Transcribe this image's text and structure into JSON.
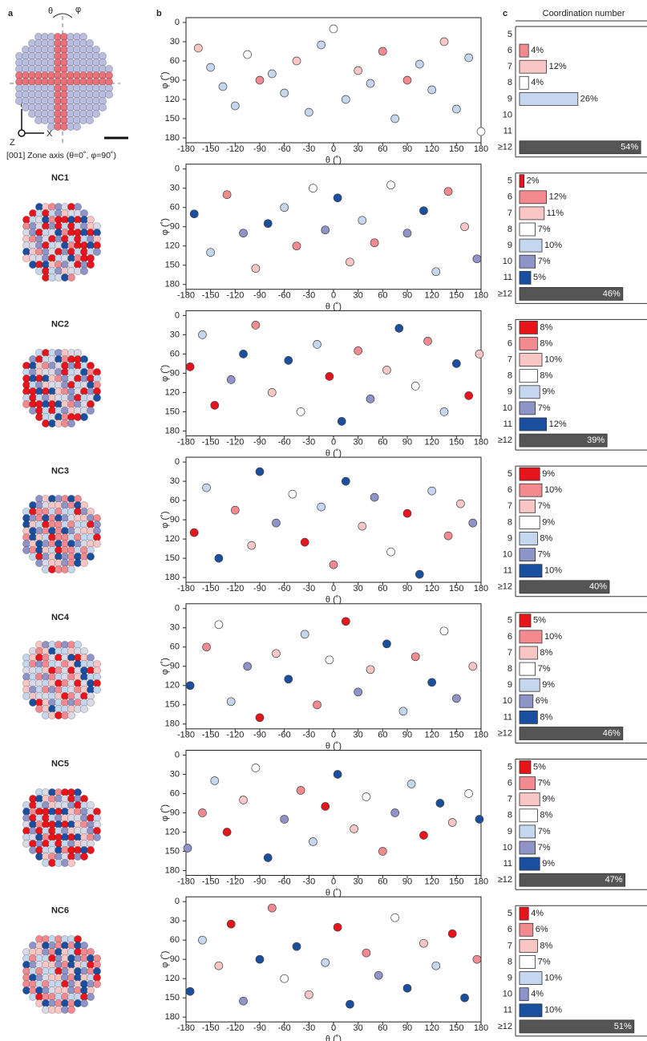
{
  "panel_labels": [
    "a",
    "b",
    "c"
  ],
  "coordination_title": "Coordination number",
  "zone_axis": "[001] Zone axis (θ=0˚, φ=90˚)",
  "axis_letters": {
    "x": "X",
    "y": "Y",
    "z": "Z",
    "theta": "θ",
    "phi": "φ"
  },
  "nc_labels": [
    "NC1",
    "NC2",
    "NC3",
    "NC4",
    "NC5",
    "NC6"
  ],
  "cn_colors": [
    "#e8141c",
    "#f28a90",
    "#f8c6c4",
    "#ffffff",
    "#c5d7ef",
    "#8e93c8",
    "#1a4fa0",
    "#555555"
  ],
  "chart_data": [
    {
      "type": "scatter",
      "xlabel": "θ (˚)",
      "ylabel": "φ (˚)",
      "xlim": [
        -180,
        180
      ],
      "ylim": [
        180,
        0
      ],
      "xticks": [
        -180,
        -150,
        -120,
        -90,
        -60,
        -30,
        0,
        30,
        60,
        90,
        120,
        150,
        180
      ],
      "yticks": [
        0,
        30,
        60,
        90,
        120,
        150,
        180
      ],
      "x": [
        -165,
        -150,
        -135,
        -120,
        -105,
        -90,
        -75,
        -60,
        -45,
        -30,
        -15,
        0,
        15,
        30,
        45,
        60,
        75,
        90,
        105,
        120,
        135,
        150,
        165,
        180
      ],
      "y": [
        40,
        70,
        100,
        130,
        50,
        90,
        80,
        110,
        60,
        140,
        35,
        10,
        120,
        75,
        95,
        45,
        150,
        90,
        65,
        105,
        30,
        135,
        55,
        170
      ],
      "cn": [
        7,
        9,
        9,
        9,
        8,
        6,
        9,
        9,
        7,
        9,
        9,
        8,
        9,
        7,
        9,
        6,
        9,
        6,
        9,
        9,
        7,
        9,
        9,
        8
      ]
    },
    {
      "type": "scatter",
      "xlabel": "θ (˚)",
      "ylabel": "φ (˚)",
      "xlim": [
        -180,
        180
      ],
      "ylim": [
        180,
        0
      ],
      "xticks": [
        -180,
        -150,
        -120,
        -90,
        -60,
        -30,
        0,
        30,
        60,
        90,
        120,
        150,
        180
      ],
      "yticks": [
        0,
        30,
        60,
        90,
        120,
        150,
        180
      ],
      "x": [
        -170,
        -150,
        -130,
        -110,
        -95,
        -80,
        -60,
        -45,
        -25,
        -10,
        5,
        20,
        35,
        50,
        70,
        90,
        110,
        125,
        140,
        160,
        175
      ],
      "y": [
        70,
        130,
        40,
        100,
        155,
        85,
        60,
        120,
        30,
        95,
        45,
        145,
        80,
        115,
        25,
        100,
        65,
        160,
        35,
        90,
        140
      ],
      "cn": [
        11,
        9,
        6,
        10,
        7,
        11,
        9,
        6,
        8,
        10,
        11,
        7,
        9,
        6,
        8,
        10,
        11,
        9,
        6,
        7,
        10
      ]
    },
    {
      "type": "scatter",
      "xlabel": "θ (˚)",
      "ylabel": "φ (˚)",
      "xlim": [
        -180,
        180
      ],
      "ylim": [
        180,
        0
      ],
      "xticks": [
        -180,
        -150,
        -120,
        -90,
        -60,
        -30,
        0,
        30,
        60,
        90,
        120,
        150,
        180
      ],
      "yticks": [
        0,
        30,
        60,
        90,
        120,
        150,
        180
      ],
      "x": [
        -175,
        -160,
        -145,
        -125,
        -110,
        -95,
        -75,
        -55,
        -40,
        -20,
        -5,
        10,
        30,
        45,
        65,
        80,
        100,
        115,
        135,
        150,
        165,
        178
      ],
      "y": [
        80,
        30,
        140,
        100,
        60,
        15,
        120,
        70,
        150,
        45,
        95,
        165,
        55,
        130,
        85,
        20,
        110,
        40,
        150,
        75,
        125,
        60
      ],
      "cn": [
        5,
        9,
        5,
        10,
        11,
        6,
        7,
        11,
        8,
        9,
        5,
        11,
        6,
        10,
        7,
        11,
        8,
        6,
        9,
        11,
        5,
        7
      ]
    },
    {
      "type": "scatter",
      "xlabel": "θ (˚)",
      "ylabel": "φ (˚)",
      "xlim": [
        -180,
        180
      ],
      "ylim": [
        180,
        0
      ],
      "xticks": [
        -180,
        -150,
        -120,
        -90,
        -60,
        -30,
        0,
        30,
        60,
        90,
        120,
        150,
        180
      ],
      "yticks": [
        0,
        30,
        60,
        90,
        120,
        150,
        180
      ],
      "x": [
        -170,
        -155,
        -140,
        -120,
        -100,
        -90,
        -70,
        -50,
        -35,
        -15,
        0,
        15,
        35,
        50,
        70,
        90,
        105,
        120,
        140,
        155,
        170
      ],
      "y": [
        110,
        40,
        150,
        75,
        130,
        15,
        95,
        50,
        125,
        70,
        160,
        30,
        100,
        55,
        140,
        80,
        175,
        45,
        115,
        65,
        95
      ],
      "cn": [
        5,
        9,
        11,
        6,
        7,
        11,
        10,
        8,
        5,
        9,
        6,
        11,
        7,
        10,
        8,
        5,
        11,
        9,
        6,
        7,
        10
      ]
    },
    {
      "type": "scatter",
      "xlabel": "θ (˚)",
      "ylabel": "φ (˚)",
      "xlim": [
        -180,
        180
      ],
      "ylim": [
        180,
        0
      ],
      "xticks": [
        -180,
        -150,
        -120,
        -90,
        -60,
        -30,
        0,
        30,
        60,
        90,
        120,
        150,
        180
      ],
      "yticks": [
        0,
        30,
        60,
        90,
        120,
        150,
        180
      ],
      "x": [
        -175,
        -155,
        -140,
        -125,
        -105,
        -90,
        -70,
        -55,
        -35,
        -20,
        -5,
        15,
        30,
        45,
        65,
        85,
        100,
        120,
        135,
        150,
        170
      ],
      "y": [
        120,
        60,
        25,
        145,
        90,
        170,
        70,
        110,
        40,
        150,
        80,
        20,
        130,
        95,
        55,
        160,
        75,
        115,
        35,
        140,
        90
      ],
      "cn": [
        11,
        6,
        8,
        9,
        10,
        5,
        7,
        11,
        9,
        6,
        8,
        5,
        10,
        7,
        11,
        9,
        6,
        11,
        8,
        10,
        7
      ]
    },
    {
      "type": "scatter",
      "xlabel": "θ (˚)",
      "ylabel": "φ (˚)",
      "xlim": [
        -180,
        180
      ],
      "ylim": [
        180,
        0
      ],
      "xticks": [
        -180,
        -150,
        -120,
        -90,
        -60,
        -30,
        0,
        30,
        60,
        90,
        120,
        150,
        180
      ],
      "yticks": [
        0,
        30,
        60,
        90,
        120,
        150,
        180
      ],
      "x": [
        -178,
        -160,
        -145,
        -130,
        -110,
        -95,
        -80,
        -60,
        -40,
        -25,
        -10,
        5,
        25,
        40,
        60,
        75,
        95,
        110,
        130,
        145,
        165,
        178
      ],
      "y": [
        145,
        90,
        40,
        120,
        70,
        20,
        160,
        100,
        55,
        135,
        80,
        30,
        115,
        65,
        150,
        90,
        45,
        125,
        75,
        105,
        60,
        100
      ],
      "cn": [
        10,
        6,
        9,
        5,
        7,
        8,
        11,
        10,
        6,
        9,
        5,
        11,
        7,
        8,
        6,
        10,
        9,
        5,
        11,
        7,
        8,
        11
      ]
    },
    {
      "type": "scatter",
      "xlabel": "θ (˚)",
      "ylabel": "φ (˚)",
      "xlim": [
        -180,
        180
      ],
      "ylim": [
        180,
        0
      ],
      "xticks": [
        -180,
        -150,
        -120,
        -90,
        -60,
        -30,
        0,
        30,
        60,
        90,
        120,
        150,
        180
      ],
      "yticks": [
        0,
        30,
        60,
        90,
        120,
        150,
        180
      ],
      "x": [
        -175,
        -160,
        -140,
        -125,
        -110,
        -90,
        -75,
        -60,
        -45,
        -30,
        -10,
        5,
        20,
        40,
        55,
        75,
        90,
        110,
        125,
        145,
        160,
        175
      ],
      "y": [
        140,
        60,
        100,
        35,
        155,
        90,
        10,
        120,
        70,
        145,
        95,
        40,
        160,
        80,
        115,
        25,
        135,
        65,
        100,
        50,
        150,
        90
      ],
      "cn": [
        11,
        9,
        7,
        5,
        10,
        11,
        6,
        8,
        11,
        7,
        9,
        5,
        11,
        6,
        10,
        8,
        11,
        7,
        9,
        5,
        11,
        6
      ]
    },
    {
      "type": "hbar",
      "categories": [
        "5",
        "6",
        "7",
        "8",
        "9",
        "10",
        "11",
        "≥12"
      ],
      "values": [
        null,
        4,
        12,
        4,
        26,
        null,
        null,
        54
      ],
      "value_labels": [
        null,
        "4%",
        "12%",
        "4%",
        "26%",
        null,
        null,
        "54%"
      ]
    },
    {
      "type": "hbar",
      "categories": [
        "5",
        "6",
        "7",
        "8",
        "9",
        "10",
        "11",
        "≥12"
      ],
      "values": [
        2,
        12,
        11,
        7,
        10,
        7,
        5,
        46
      ],
      "value_labels": [
        "2%",
        "12%",
        "11%",
        "7%",
        "10%",
        "7%",
        "5%",
        "46%"
      ]
    },
    {
      "type": "hbar",
      "categories": [
        "5",
        "6",
        "7",
        "8",
        "9",
        "10",
        "11",
        "≥12"
      ],
      "values": [
        8,
        8,
        10,
        8,
        9,
        7,
        12,
        39
      ],
      "value_labels": [
        "8%",
        "8%",
        "10%",
        "8%",
        "9%",
        "7%",
        "12%",
        "39%"
      ]
    },
    {
      "type": "hbar",
      "categories": [
        "5",
        "6",
        "7",
        "8",
        "9",
        "10",
        "11",
        "≥12"
      ],
      "values": [
        9,
        10,
        7,
        9,
        8,
        7,
        10,
        40
      ],
      "value_labels": [
        "9%",
        "10%",
        "7%",
        "9%",
        "8%",
        "7%",
        "10%",
        "40%"
      ]
    },
    {
      "type": "hbar",
      "categories": [
        "5",
        "6",
        "7",
        "8",
        "9",
        "10",
        "11",
        "≥12"
      ],
      "values": [
        5,
        10,
        8,
        7,
        9,
        6,
        8,
        46
      ],
      "value_labels": [
        "5%",
        "10%",
        "8%",
        "7%",
        "9%",
        "6%",
        "8%",
        "46%"
      ]
    },
    {
      "type": "hbar",
      "categories": [
        "5",
        "6",
        "7",
        "8",
        "9",
        "10",
        "11",
        "≥12"
      ],
      "values": [
        5,
        7,
        9,
        8,
        7,
        7,
        9,
        47
      ],
      "value_labels": [
        "5%",
        "7%",
        "9%",
        "8%",
        "7%",
        "7%",
        "9%",
        "47%"
      ]
    },
    {
      "type": "hbar",
      "categories": [
        "5",
        "6",
        "7",
        "8",
        "9",
        "10",
        "11",
        "≥12"
      ],
      "values": [
        4,
        6,
        8,
        7,
        10,
        4,
        10,
        51
      ],
      "value_labels": [
        "4%",
        "6%",
        "8%",
        "7%",
        "10%",
        "4%",
        "10%",
        "51%"
      ]
    }
  ]
}
